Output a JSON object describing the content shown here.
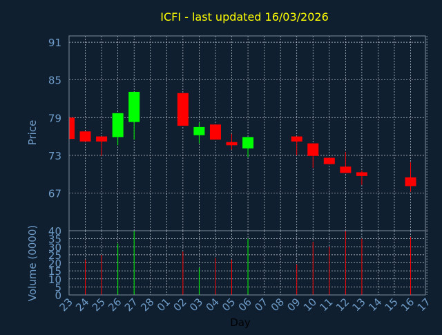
{
  "chart_data": [
    {
      "type": "candlestick",
      "title": "ICFI - last updated 16/03/2026",
      "ylabel": "Price",
      "ylim": [
        61,
        92
      ],
      "yticks": [
        91,
        85,
        79,
        73,
        67
      ],
      "grid": true,
      "candles": [
        {
          "day": "23",
          "open": 79.0,
          "close": 75.6,
          "high": 79.0,
          "low": 75.6
        },
        {
          "day": "24",
          "open": 76.8,
          "close": 75.2,
          "high": 76.8,
          "low": 75.2
        },
        {
          "day": "25",
          "open": 76.0,
          "close": 75.2,
          "high": 76.0,
          "low": 72.9
        },
        {
          "day": "26",
          "open": 75.9,
          "close": 79.7,
          "high": 79.7,
          "low": 74.6
        },
        {
          "day": "27",
          "open": 78.3,
          "close": 83.1,
          "high": 83.1,
          "low": 75.5
        },
        {
          "day": "02",
          "open": 82.9,
          "close": 77.7,
          "high": 82.9,
          "low": 77.7
        },
        {
          "day": "03",
          "open": 76.2,
          "close": 77.5,
          "high": 78.2,
          "low": 74.9
        },
        {
          "day": "04",
          "open": 77.9,
          "close": 75.5,
          "high": 77.9,
          "low": 75.5
        },
        {
          "day": "05",
          "open": 75.1,
          "close": 74.6,
          "high": 76.4,
          "low": 73.9
        },
        {
          "day": "06",
          "open": 74.1,
          "close": 75.9,
          "high": 75.9,
          "low": 72.7
        },
        {
          "day": "09",
          "open": 76.0,
          "close": 75.2,
          "high": 76.0,
          "low": 73.0
        },
        {
          "day": "10",
          "open": 74.9,
          "close": 72.9,
          "high": 74.9,
          "low": 71.0
        },
        {
          "day": "11",
          "open": 72.6,
          "close": 71.6,
          "high": 72.6,
          "low": 71.6
        },
        {
          "day": "12",
          "open": 71.2,
          "close": 70.2,
          "high": 73.5,
          "low": 70.2
        },
        {
          "day": "13",
          "open": 70.3,
          "close": 69.7,
          "high": 70.6,
          "low": 68.3
        },
        {
          "day": "16",
          "open": 69.5,
          "close": 68.1,
          "high": 71.9,
          "low": 67.2
        }
      ]
    },
    {
      "type": "bar",
      "ylabel": "Volume (0000)",
      "xlabel": "Day",
      "ylim": [
        0,
        40
      ],
      "yticks": [
        0,
        5,
        10,
        15,
        20,
        25,
        30,
        35,
        40
      ],
      "grid": true,
      "categories": [
        "23",
        "24",
        "25",
        "26",
        "27",
        "28",
        "01",
        "02",
        "03",
        "04",
        "05",
        "06",
        "07",
        "08",
        "09",
        "10",
        "11",
        "12",
        "13",
        "14",
        "15",
        "16",
        "17"
      ],
      "values": [
        22,
        22,
        25,
        32,
        40,
        0,
        0,
        27,
        17,
        23,
        22,
        35,
        0,
        0,
        19,
        33,
        30,
        40,
        35,
        0,
        0,
        36,
        0
      ],
      "colors": [
        "#ff0000",
        "#ff0000",
        "#ff0000",
        "#00ff00",
        "#00ff00",
        "",
        "",
        "#ff0000",
        "#00ff00",
        "#ff0000",
        "#ff0000",
        "#00ff00",
        "",
        "",
        "#ff0000",
        "#ff0000",
        "#ff0000",
        "#ff0000",
        "#ff0000",
        "",
        "",
        "#ff0000",
        ""
      ]
    }
  ],
  "colors": {
    "background": "#0f1f30",
    "plot_border": "#7f8fa0",
    "grid": "#c8d0d8",
    "axis_text": "#6f9cc8",
    "title": "#ffff00",
    "up": "#00ff00",
    "down": "#ff0000"
  }
}
